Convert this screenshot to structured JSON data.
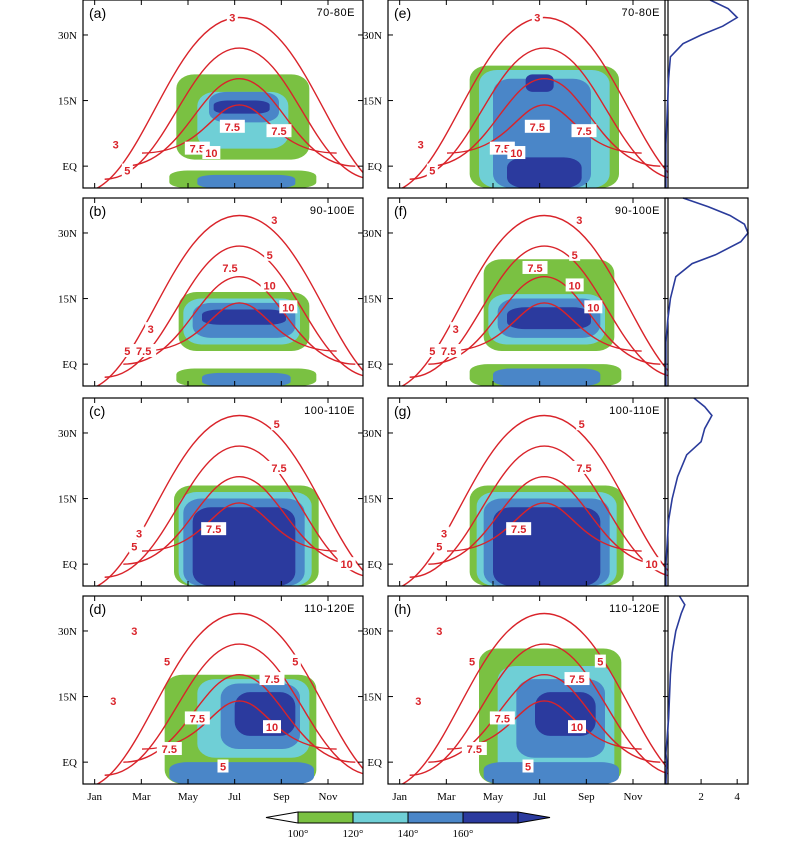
{
  "chart_data": {
    "type": "contour",
    "x_axis": {
      "ticks": [
        "Jan",
        "Mar",
        "May",
        "Jul",
        "Sep",
        "Nov"
      ],
      "tick_months": [
        1,
        3,
        5,
        7,
        9,
        11
      ],
      "range_months": [
        0.5,
        12.5
      ]
    },
    "y_axis": {
      "ticks": [
        "EQ",
        "15N",
        "30N"
      ],
      "tick_lats": [
        0,
        15,
        30
      ],
      "range_lat": [
        -5,
        38
      ]
    },
    "fill_colorbar": {
      "levels": [
        "100°",
        "120°",
        "140°",
        "160°"
      ],
      "colors": [
        "#ffffff",
        "#7ac142",
        "#6fcfd6",
        "#4a86c8",
        "#2b3a9e"
      ]
    },
    "contour_color": "#d9232a",
    "profile_axis": {
      "ticks": [
        "2",
        "4"
      ],
      "tick_values": [
        2,
        4
      ],
      "range": [
        0,
        4.6
      ]
    },
    "panels": [
      {
        "letter": "(a)",
        "region": "70-80E",
        "contour_labels": [
          {
            "text": "3",
            "month": 6.9,
            "lat": 34
          },
          {
            "text": "3",
            "month": 1.9,
            "lat": 5
          },
          {
            "text": "5",
            "month": 2.4,
            "lat": -1
          },
          {
            "text": "7.5",
            "month": 5.4,
            "lat": 4
          },
          {
            "text": "10",
            "month": 6.0,
            "lat": 3
          },
          {
            "text": "7.5",
            "month": 6.9,
            "lat": 9
          },
          {
            "text": "7.5",
            "month": 8.9,
            "lat": 8
          }
        ],
        "fill_blobs": [
          {
            "level": 1,
            "x0": 4.5,
            "x1": 10.2,
            "y0": 1.5,
            "y1": 21
          },
          {
            "level": 2,
            "x0": 5.4,
            "x1": 9.3,
            "y0": 4,
            "y1": 17
          },
          {
            "level": 3,
            "x0": 5.9,
            "x1": 8.9,
            "y0": 10,
            "y1": 17
          },
          {
            "level": 4,
            "x0": 6.1,
            "x1": 8.5,
            "y0": 12,
            "y1": 15
          },
          {
            "level": 1,
            "x0": 4.2,
            "x1": 10.5,
            "y0": -5,
            "y1": -1
          },
          {
            "level": 3,
            "x0": 5.4,
            "x1": 9.6,
            "y0": -5,
            "y1": -2
          }
        ]
      },
      {
        "letter": "(b)",
        "region": "90-100E",
        "contour_labels": [
          {
            "text": "3",
            "month": 8.7,
            "lat": 33
          },
          {
            "text": "5",
            "month": 8.5,
            "lat": 25
          },
          {
            "text": "7.5",
            "month": 6.8,
            "lat": 22
          },
          {
            "text": "10",
            "month": 8.5,
            "lat": 18
          },
          {
            "text": "10",
            "month": 9.3,
            "lat": 13
          },
          {
            "text": "3",
            "month": 3.4,
            "lat": 8
          },
          {
            "text": "5",
            "month": 2.4,
            "lat": 3
          },
          {
            "text": "7.5",
            "month": 3.1,
            "lat": 3
          }
        ],
        "fill_blobs": [
          {
            "level": 1,
            "x0": 4.6,
            "x1": 10.2,
            "y0": 3,
            "y1": 16.5
          },
          {
            "level": 2,
            "x0": 4.8,
            "x1": 9.8,
            "y0": 4.5,
            "y1": 15
          },
          {
            "level": 3,
            "x0": 5.2,
            "x1": 9.6,
            "y0": 6,
            "y1": 14
          },
          {
            "level": 4,
            "x0": 5.6,
            "x1": 9.2,
            "y0": 9,
            "y1": 12.5
          },
          {
            "level": 1,
            "x0": 4.5,
            "x1": 10.5,
            "y0": -5,
            "y1": -1
          },
          {
            "level": 3,
            "x0": 5.6,
            "x1": 9.4,
            "y0": -5,
            "y1": -2
          }
        ]
      },
      {
        "letter": "(c)",
        "region": "100-110E",
        "contour_labels": [
          {
            "text": "5",
            "month": 8.8,
            "lat": 32
          },
          {
            "text": "7.5",
            "month": 8.9,
            "lat": 22
          },
          {
            "text": "7.5",
            "month": 6.1,
            "lat": 8
          },
          {
            "text": "3",
            "month": 2.9,
            "lat": 7
          },
          {
            "text": "5",
            "month": 2.7,
            "lat": 4
          },
          {
            "text": "10",
            "month": 11.8,
            "lat": 0
          }
        ],
        "fill_blobs": [
          {
            "level": 1,
            "x0": 4.4,
            "x1": 10.6,
            "y0": -5,
            "y1": 18
          },
          {
            "level": 2,
            "x0": 4.6,
            "x1": 10.3,
            "y0": -5,
            "y1": 16.5
          },
          {
            "level": 3,
            "x0": 4.8,
            "x1": 10.0,
            "y0": -5,
            "y1": 15
          },
          {
            "level": 4,
            "x0": 5.2,
            "x1": 9.6,
            "y0": -5,
            "y1": 13
          }
        ]
      },
      {
        "letter": "(d)",
        "region": "110-120E",
        "contour_labels": [
          {
            "text": "3",
            "month": 2.7,
            "lat": 30
          },
          {
            "text": "5",
            "month": 4.1,
            "lat": 23
          },
          {
            "text": "5",
            "month": 9.6,
            "lat": 23
          },
          {
            "text": "7.5",
            "month": 8.6,
            "lat": 19
          },
          {
            "text": "3",
            "month": 1.8,
            "lat": 14
          },
          {
            "text": "7.5",
            "month": 5.4,
            "lat": 10
          },
          {
            "text": "10",
            "month": 8.6,
            "lat": 8
          },
          {
            "text": "7.5",
            "month": 4.2,
            "lat": 3
          },
          {
            "text": "5",
            "month": 6.5,
            "lat": -1
          }
        ],
        "fill_blobs": [
          {
            "level": 1,
            "x0": 4.0,
            "x1": 10.5,
            "y0": -5,
            "y1": 20
          },
          {
            "level": 2,
            "x0": 5.4,
            "x1": 10.2,
            "y0": 1,
            "y1": 19
          },
          {
            "level": 3,
            "x0": 6.4,
            "x1": 9.8,
            "y0": 3,
            "y1": 18
          },
          {
            "level": 4,
            "x0": 7.0,
            "x1": 9.6,
            "y0": 6,
            "y1": 16
          },
          {
            "level": 3,
            "x0": 4.2,
            "x1": 10.4,
            "y0": -5,
            "y1": 0
          }
        ]
      },
      {
        "letter": "(e)",
        "region": "70-80E",
        "contour_labels": [
          {
            "text": "3",
            "month": 6.9,
            "lat": 34
          },
          {
            "text": "3",
            "month": 1.9,
            "lat": 5
          },
          {
            "text": "5",
            "month": 2.4,
            "lat": -1
          },
          {
            "text": "7.5",
            "month": 5.4,
            "lat": 4
          },
          {
            "text": "10",
            "month": 6.0,
            "lat": 3
          },
          {
            "text": "7.5",
            "month": 6.9,
            "lat": 9
          },
          {
            "text": "7.5",
            "month": 8.9,
            "lat": 8
          }
        ],
        "fill_blobs": [
          {
            "level": 1,
            "x0": 4.0,
            "x1": 10.4,
            "y0": -5,
            "y1": 23
          },
          {
            "level": 2,
            "x0": 4.4,
            "x1": 10.0,
            "y0": -5,
            "y1": 22
          },
          {
            "level": 3,
            "x0": 5.0,
            "x1": 9.2,
            "y0": -5,
            "y1": 20
          },
          {
            "level": 4,
            "x0": 6.4,
            "x1": 7.6,
            "y0": 17,
            "y1": 21
          },
          {
            "level": 4,
            "x0": 5.6,
            "x1": 8.8,
            "y0": -5,
            "y1": 2
          }
        ]
      },
      {
        "letter": "(f)",
        "region": "90-100E",
        "contour_labels": [
          {
            "text": "3",
            "month": 8.7,
            "lat": 33
          },
          {
            "text": "5",
            "month": 8.5,
            "lat": 25
          },
          {
            "text": "7.5",
            "month": 6.8,
            "lat": 22
          },
          {
            "text": "10",
            "month": 8.5,
            "lat": 18
          },
          {
            "text": "10",
            "month": 9.3,
            "lat": 13
          },
          {
            "text": "3",
            "month": 3.4,
            "lat": 8
          },
          {
            "text": "5",
            "month": 2.4,
            "lat": 3
          },
          {
            "text": "7.5",
            "month": 3.1,
            "lat": 3
          }
        ],
        "fill_blobs": [
          {
            "level": 1,
            "x0": 4.6,
            "x1": 10.2,
            "y0": 3,
            "y1": 24
          },
          {
            "level": 2,
            "x0": 4.8,
            "x1": 9.8,
            "y0": 4.5,
            "y1": 16
          },
          {
            "level": 3,
            "x0": 5.2,
            "x1": 9.6,
            "y0": 6,
            "y1": 15
          },
          {
            "level": 4,
            "x0": 5.6,
            "x1": 9.2,
            "y0": 8,
            "y1": 13
          },
          {
            "level": 1,
            "x0": 4.0,
            "x1": 10.5,
            "y0": -5,
            "y1": 0
          },
          {
            "level": 3,
            "x0": 5.0,
            "x1": 9.6,
            "y0": -5,
            "y1": -1
          }
        ]
      },
      {
        "letter": "(g)",
        "region": "100-110E",
        "contour_labels": [
          {
            "text": "5",
            "month": 8.8,
            "lat": 32
          },
          {
            "text": "7.5",
            "month": 8.9,
            "lat": 22
          },
          {
            "text": "7.5",
            "month": 6.1,
            "lat": 8
          },
          {
            "text": "3",
            "month": 2.9,
            "lat": 7
          },
          {
            "text": "5",
            "month": 2.7,
            "lat": 4
          },
          {
            "text": "10",
            "month": 11.8,
            "lat": 0
          }
        ],
        "fill_blobs": [
          {
            "level": 1,
            "x0": 4.0,
            "x1": 10.6,
            "y0": -5,
            "y1": 18
          },
          {
            "level": 2,
            "x0": 4.3,
            "x1": 10.3,
            "y0": -5,
            "y1": 16.5
          },
          {
            "level": 3,
            "x0": 4.6,
            "x1": 10.0,
            "y0": -5,
            "y1": 15
          },
          {
            "level": 4,
            "x0": 5.0,
            "x1": 9.6,
            "y0": -5,
            "y1": 13
          }
        ]
      },
      {
        "letter": "(h)",
        "region": "110-120E",
        "contour_labels": [
          {
            "text": "3",
            "month": 2.7,
            "lat": 30
          },
          {
            "text": "5",
            "month": 4.1,
            "lat": 23
          },
          {
            "text": "5",
            "month": 9.6,
            "lat": 23
          },
          {
            "text": "7.5",
            "month": 8.6,
            "lat": 19
          },
          {
            "text": "3",
            "month": 1.8,
            "lat": 14
          },
          {
            "text": "7.5",
            "month": 5.4,
            "lat": 10
          },
          {
            "text": "10",
            "month": 8.6,
            "lat": 8
          },
          {
            "text": "7.5",
            "month": 4.2,
            "lat": 3
          },
          {
            "text": "5",
            "month": 6.5,
            "lat": -1
          }
        ],
        "fill_blobs": [
          {
            "level": 1,
            "x0": 4.4,
            "x1": 10.5,
            "y0": -5,
            "y1": 26
          },
          {
            "level": 2,
            "x0": 5.2,
            "x1": 10.2,
            "y0": -5,
            "y1": 22
          },
          {
            "level": 3,
            "x0": 6.0,
            "x1": 9.8,
            "y0": 1,
            "y1": 19
          },
          {
            "level": 4,
            "x0": 6.8,
            "x1": 9.4,
            "y0": 6,
            "y1": 16
          },
          {
            "level": 3,
            "x0": 4.6,
            "x1": 10.4,
            "y0": -5,
            "y1": 0
          }
        ]
      }
    ],
    "profiles": [
      {
        "lat": [
          -5,
          5,
          10,
          15,
          20,
          25,
          28,
          30,
          32,
          34,
          36,
          38
        ],
        "value": [
          0.05,
          0.05,
          0.1,
          0.15,
          0.2,
          0.3,
          1.0,
          2.0,
          3.2,
          4.0,
          3.5,
          2.5
        ]
      },
      {
        "lat": [
          -5,
          5,
          10,
          15,
          20,
          23,
          25,
          28,
          30,
          32,
          34,
          36,
          38
        ],
        "value": [
          0.05,
          0.05,
          0.15,
          0.3,
          0.6,
          1.5,
          2.8,
          4.2,
          4.6,
          4.4,
          3.6,
          2.4,
          1.0
        ]
      },
      {
        "lat": [
          -5,
          0,
          10,
          15,
          20,
          25,
          28,
          31,
          34,
          36,
          38
        ],
        "value": [
          0.05,
          0.05,
          0.2,
          0.4,
          0.7,
          1.2,
          2.0,
          2.2,
          2.6,
          2.2,
          1.6
        ]
      },
      {
        "lat": [
          -5,
          0,
          2,
          10,
          20,
          25,
          30,
          34,
          36,
          38
        ],
        "value": [
          0.05,
          0.1,
          0.05,
          0.2,
          0.3,
          0.4,
          0.6,
          0.9,
          1.1,
          0.8
        ]
      }
    ]
  }
}
